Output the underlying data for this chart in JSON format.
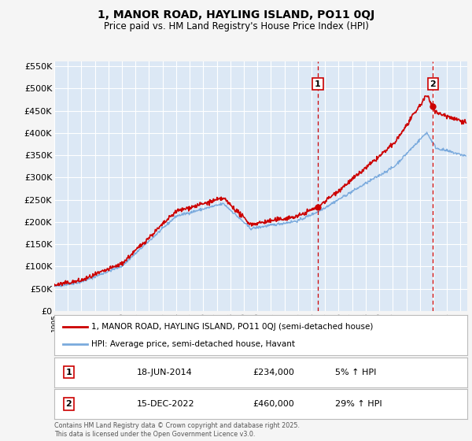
{
  "title1": "1, MANOR ROAD, HAYLING ISLAND, PO11 0QJ",
  "title2": "Price paid vs. HM Land Registry's House Price Index (HPI)",
  "legend_label1": "1, MANOR ROAD, HAYLING ISLAND, PO11 0QJ (semi-detached house)",
  "legend_label2": "HPI: Average price, semi-detached house, Havant",
  "sale1_label": "1",
  "sale1_date": "18-JUN-2014",
  "sale1_price": "£234,000",
  "sale1_hpi": "5% ↑ HPI",
  "sale2_label": "2",
  "sale2_date": "15-DEC-2022",
  "sale2_price": "£460,000",
  "sale2_hpi": "29% ↑ HPI",
  "footer": "Contains HM Land Registry data © Crown copyright and database right 2025.\nThis data is licensed under the Open Government Licence v3.0.",
  "line1_color": "#cc0000",
  "line2_color": "#7aaadd",
  "vline_color": "#cc0000",
  "fig_bg_color": "#f5f5f5",
  "plot_bg_color": "#dce8f5",
  "grid_color": "#ffffff",
  "ylim": [
    0,
    560000
  ],
  "yticks": [
    0,
    50000,
    100000,
    150000,
    200000,
    250000,
    300000,
    350000,
    400000,
    450000,
    500000,
    550000
  ],
  "sale1_year": 2014.46,
  "sale1_value": 234000,
  "sale2_year": 2022.96,
  "sale2_value": 460000,
  "vline1_x": 2014.46,
  "vline2_x": 2022.96,
  "xmin": 1995,
  "xmax": 2025.5
}
